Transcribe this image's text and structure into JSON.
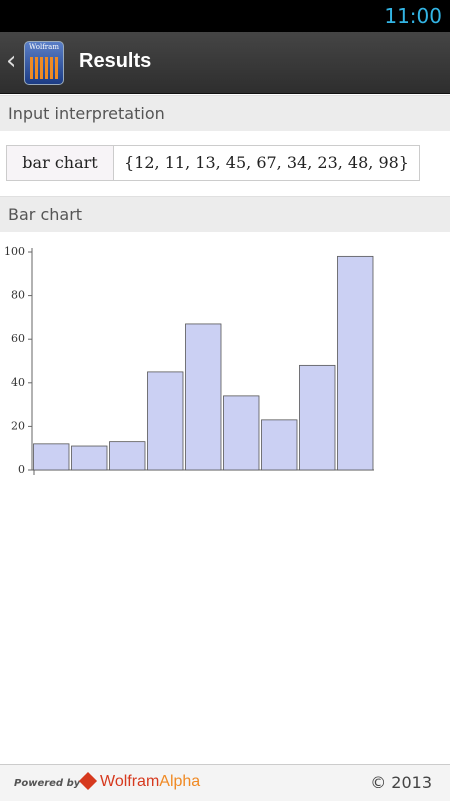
{
  "status_bar": {
    "time": "11:00"
  },
  "header": {
    "icon_label": "Wolfram",
    "title": "Results"
  },
  "input_section": {
    "title": "Input interpretation",
    "cells": [
      "bar chart",
      "{12, 11, 13, 45, 67, 34, 23, 48, 98}"
    ]
  },
  "chart_section": {
    "title": "Bar chart"
  },
  "chart_data": {
    "type": "bar",
    "values": [
      12,
      11,
      13,
      45,
      67,
      34,
      23,
      48,
      98
    ],
    "color": "#cbd0f3",
    "ylim": [
      0,
      100
    ],
    "yticks": [
      0,
      20,
      40,
      60,
      80,
      100
    ]
  },
  "footer": {
    "powered_by": "Powered by",
    "brand_wolfram": "Wolfram",
    "brand_alpha": "Alpha",
    "copyright": "© 2013"
  }
}
